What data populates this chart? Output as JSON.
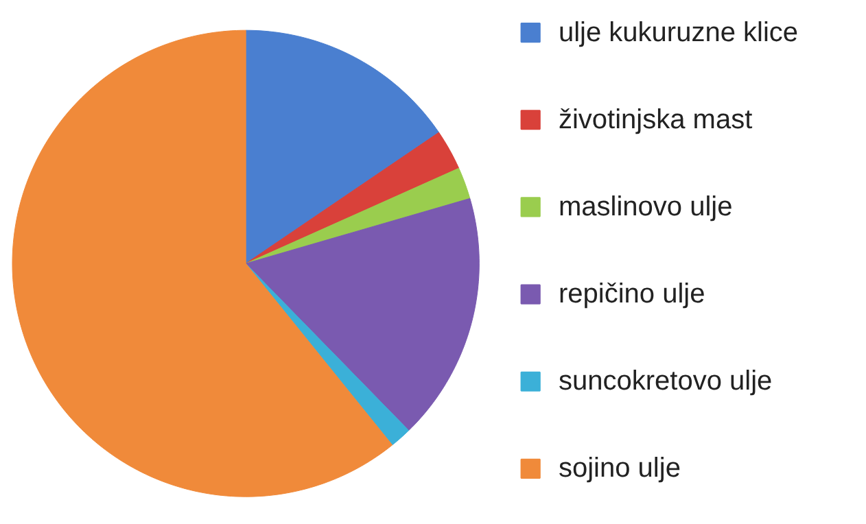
{
  "chart_data": {
    "type": "pie",
    "categories": [
      "ulje kukuruzne klice",
      "životinjska mast",
      "maslinovo ulje",
      "repičino ulje",
      "suncokretovo ulje",
      "sojino ulje"
    ],
    "values": [
      15.5,
      2.8,
      2.2,
      17.2,
      1.5,
      60.8
    ],
    "colors": [
      "#4a7fd0",
      "#d9413a",
      "#9acd4e",
      "#7a5ab0",
      "#3bb0d8",
      "#f08a3a"
    ],
    "legend": "right"
  }
}
